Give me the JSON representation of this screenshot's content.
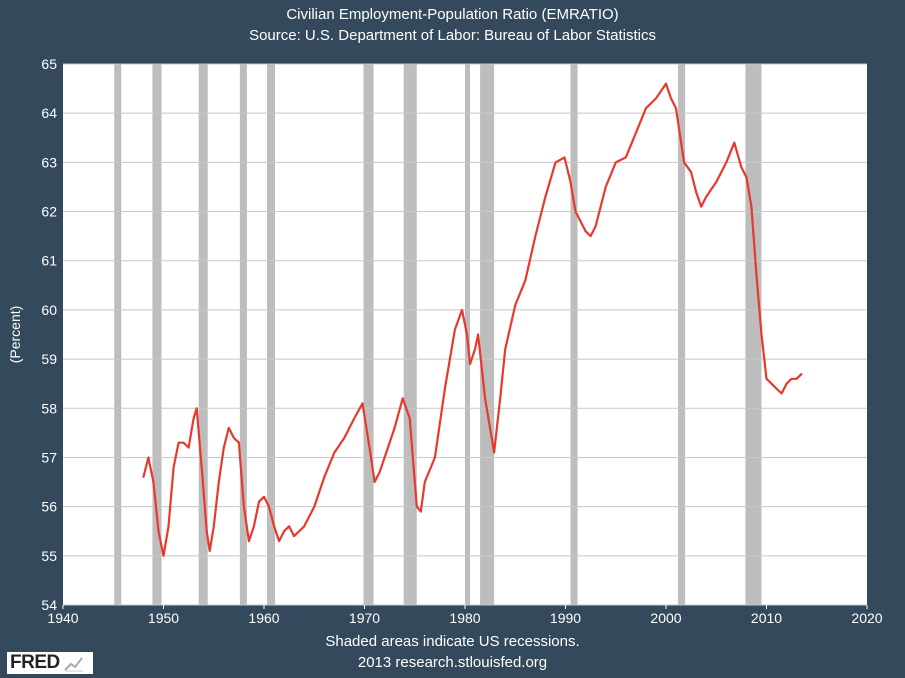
{
  "chart_data": {
    "type": "line",
    "title": "Civilian Employment-Population Ratio (EMRATIO)",
    "subtitle": "Source: U.S. Department of Labor: Bureau of Labor Statistics",
    "xlabel": "",
    "ylabel": "(Percent)",
    "xlim": [
      1940,
      2020
    ],
    "ylim": [
      54,
      65
    ],
    "xticks": [
      1940,
      1950,
      1960,
      1970,
      1980,
      1990,
      2000,
      2010,
      2020
    ],
    "yticks": [
      54,
      55,
      56,
      57,
      58,
      59,
      60,
      61,
      62,
      63,
      64,
      65
    ],
    "grid": true,
    "line_color": "#e8392c",
    "recession_color": "#bdbdbd",
    "recessions": [
      [
        1945.1,
        1945.8
      ],
      [
        1948.9,
        1949.8
      ],
      [
        1953.5,
        1954.4
      ],
      [
        1957.6,
        1958.3
      ],
      [
        1960.3,
        1961.1
      ],
      [
        1969.9,
        1970.9
      ],
      [
        1973.9,
        1975.2
      ],
      [
        1980.0,
        1980.5
      ],
      [
        1981.5,
        1982.9
      ],
      [
        1990.5,
        1991.2
      ],
      [
        2001.2,
        2001.9
      ],
      [
        2007.9,
        2009.5
      ]
    ],
    "series": [
      {
        "x": [
          1948.0,
          1948.5,
          1949.0,
          1949.5,
          1950.0,
          1950.5,
          1951.0,
          1951.5,
          1952.0,
          1952.5,
          1953.0,
          1953.3,
          1953.8,
          1954.3,
          1954.6,
          1955.0,
          1955.5,
          1956.0,
          1956.5,
          1957.0,
          1957.5,
          1958.0,
          1958.5,
          1959.0,
          1959.5,
          1960.0,
          1960.5,
          1961.0,
          1961.5,
          1962.0,
          1962.5,
          1963.0,
          1963.5,
          1964.0,
          1965.0,
          1966.0,
          1967.0,
          1968.0,
          1969.0,
          1969.8,
          1970.5,
          1971.0,
          1971.5,
          1972.0,
          1973.0,
          1973.8,
          1974.5,
          1975.2,
          1975.6,
          1976.0,
          1977.0,
          1978.0,
          1979.0,
          1979.7,
          1980.2,
          1980.5,
          1981.0,
          1981.3,
          1982.0,
          1982.9,
          1983.5,
          1984.0,
          1985.0,
          1986.0,
          1987.0,
          1988.0,
          1989.0,
          1989.9,
          1990.5,
          1991.0,
          1992.0,
          1992.5,
          1993.0,
          1994.0,
          1995.0,
          1996.0,
          1997.0,
          1998.0,
          1999.0,
          2000.0,
          2000.5,
          2001.0,
          2001.8,
          2002.5,
          2003.0,
          2003.5,
          2004.0,
          2005.0,
          2006.0,
          2006.8,
          2007.5,
          2008.0,
          2008.5,
          2009.0,
          2009.5,
          2010.0,
          2010.5,
          2011.0,
          2011.5,
          2012.0,
          2012.5,
          2013.0,
          2013.5
        ],
        "values": [
          56.6,
          57.0,
          56.5,
          55.5,
          55.0,
          55.6,
          56.8,
          57.3,
          57.3,
          57.2,
          57.8,
          58.0,
          56.8,
          55.5,
          55.1,
          55.6,
          56.5,
          57.2,
          57.6,
          57.4,
          57.3,
          56.0,
          55.3,
          55.6,
          56.1,
          56.2,
          56.0,
          55.6,
          55.3,
          55.5,
          55.6,
          55.4,
          55.5,
          55.6,
          56.0,
          56.6,
          57.1,
          57.4,
          57.8,
          58.1,
          57.2,
          56.5,
          56.7,
          57.0,
          57.6,
          58.2,
          57.8,
          56.0,
          55.9,
          56.5,
          57.0,
          58.4,
          59.6,
          60.0,
          59.5,
          58.9,
          59.2,
          59.5,
          58.2,
          57.1,
          58.2,
          59.2,
          60.1,
          60.6,
          61.5,
          62.3,
          63.0,
          63.1,
          62.6,
          62.0,
          61.6,
          61.5,
          61.7,
          62.5,
          63.0,
          63.1,
          63.6,
          64.1,
          64.3,
          64.6,
          64.3,
          64.1,
          63.0,
          62.8,
          62.4,
          62.1,
          62.3,
          62.6,
          63.0,
          63.4,
          62.9,
          62.7,
          62.1,
          60.7,
          59.5,
          58.6,
          58.5,
          58.4,
          58.3,
          58.5,
          58.6,
          58.6,
          58.7
        ]
      }
    ]
  },
  "footer": {
    "note": "Shaded areas indicate US recessions.",
    "credit": "2013 research.stlouisfed.org",
    "logo_text": "FRED"
  }
}
